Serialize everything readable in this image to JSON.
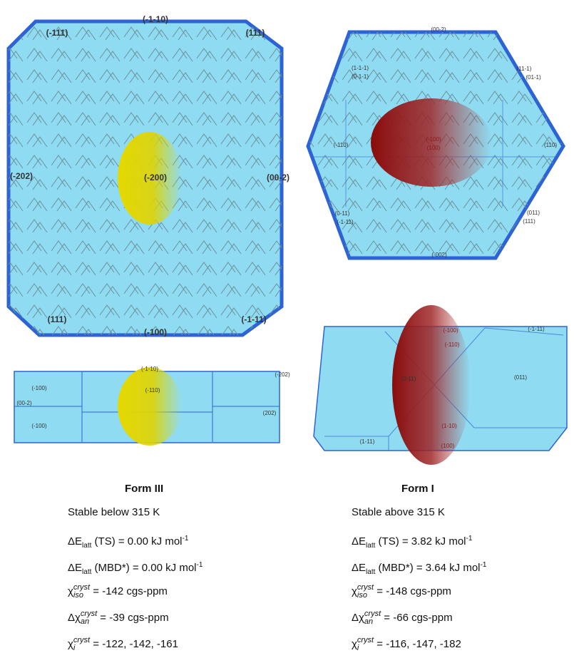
{
  "form_iii": {
    "crystal_labels": [
      "(-1-10)",
      "(-111)",
      "(111)",
      "(-202)",
      "(-200)",
      "(00-2)",
      "(111)",
      "(-1-11)",
      "(-100)"
    ],
    "slab_labels": [
      "(-1-10)",
      "(-100)",
      "(-202)",
      "(00-2)",
      "(202)",
      "(-110)",
      "(-100)"
    ],
    "title": "Form III",
    "stability": "Stable below 315 K",
    "e_ts": {
      "symbol": "ΔE",
      "sub": "latt",
      "rest": " (TS) = 0.00 kJ mol",
      "sup": "-1"
    },
    "e_mbd": {
      "symbol": "ΔE",
      "sub": "latt",
      "rest": " (MBD*) = 0.00 kJ mol",
      "sup": "-1"
    },
    "chi_iso": {
      "symbol": "χ",
      "sup": "cryst",
      "sub": "iso",
      "rest": " = -142 cgs-ppm"
    },
    "chi_an": {
      "symbol": "Δχ",
      "sup": "cryst",
      "sub": "an",
      "rest": " = -39 cgs-ppm"
    },
    "chi_i": {
      "symbol": "χ",
      "sup": "cryst",
      "sub": "i",
      "rest": " = -122, -142, -161"
    }
  },
  "form_i": {
    "crystal_labels": [
      "(00-2)",
      "(1-1-1)",
      "(0-1-1)",
      "(11-1)",
      "(01-1)",
      "(-110)",
      "(110)",
      "(-100)",
      "(100)",
      "(0-11)",
      "(-1-11)",
      "(011)",
      "(111)",
      "(-002)"
    ],
    "slab_labels": [
      "(-100)",
      "(-1-11)",
      "(-110)",
      "(0-11)",
      "(011)",
      "(1-10)",
      "(100)",
      "(1-11)"
    ],
    "title": "Form I",
    "stability": "Stable above 315 K",
    "e_ts": {
      "symbol": "ΔE",
      "sub": "latt",
      "rest": " (TS) = 3.82 kJ mol",
      "sup": "-1"
    },
    "e_mbd": {
      "symbol": "ΔE",
      "sub": "latt",
      "rest": " (MBD*) = 3.64 kJ mol",
      "sup": "-1"
    },
    "chi_iso": {
      "symbol": "χ",
      "sup": "cryst",
      "sub": "iso",
      "rest": " = -148 cgs-ppm"
    },
    "chi_an": {
      "symbol": "Δχ",
      "sup": "cryst",
      "sub": "an",
      "rest": " = -66 cgs-ppm"
    },
    "chi_i": {
      "symbol": "χ",
      "sup": "cryst",
      "sub": "i",
      "rest": " = -116, -147, -182"
    }
  }
}
